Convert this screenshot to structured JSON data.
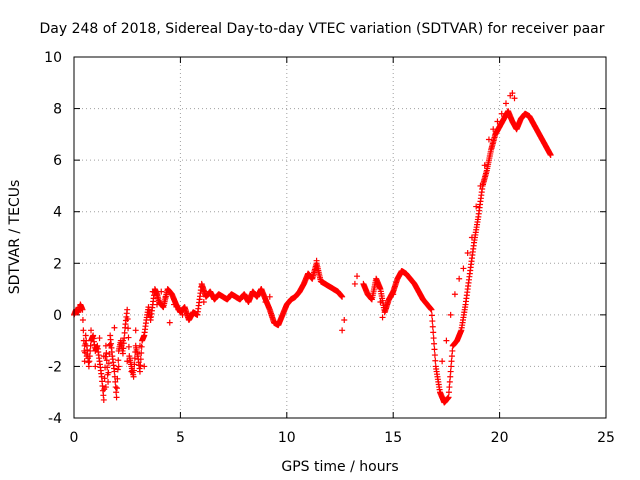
{
  "chart_data": {
    "type": "scatter",
    "title": "Day 248 of 2018, Sidereal Day-to-day VTEC variation (SDTVAR) for receiver paar",
    "xlabel": "GPS time / hours",
    "ylabel": "SDTVAR / TECUs",
    "xlim": [
      0,
      25
    ],
    "ylim": [
      -4,
      10
    ],
    "xticks": [
      "0",
      "5",
      "10",
      "15",
      "20",
      "25"
    ],
    "yticks": [
      "-4",
      "-2",
      "0",
      "2",
      "4",
      "6",
      "8",
      "10"
    ],
    "grid": true,
    "marker": "+",
    "color": "#ff0000",
    "series": [
      {
        "name": "SDTVAR",
        "x": [
          0.0,
          0.1,
          0.2,
          0.3,
          0.4,
          0.5,
          0.55,
          0.6,
          0.7,
          0.8,
          0.9,
          1.0,
          1.1,
          1.2,
          1.3,
          1.4,
          1.5,
          1.6,
          1.7,
          1.8,
          1.9,
          2.0,
          2.1,
          2.2,
          2.3,
          2.4,
          2.5,
          2.6,
          2.7,
          2.8,
          2.9,
          3.0,
          3.1,
          3.2,
          3.3,
          3.4,
          3.5,
          3.6,
          3.7,
          3.8,
          3.9,
          4.0,
          4.2,
          4.4,
          4.6,
          4.8,
          5.0,
          5.2,
          5.4,
          5.6,
          5.8,
          6.0,
          6.2,
          6.4,
          6.6,
          6.8,
          7.0,
          7.2,
          7.4,
          7.6,
          7.8,
          8.0,
          8.2,
          8.4,
          8.6,
          8.8,
          9.0,
          9.2,
          9.4,
          9.6,
          9.8,
          10.0,
          10.2,
          10.4,
          10.6,
          10.8,
          11.0,
          11.2,
          11.4,
          11.6,
          11.8,
          12.0,
          12.2,
          12.4,
          12.6,
          13.6,
          13.8,
          14.0,
          14.2,
          14.4,
          14.6,
          14.8,
          15.0,
          15.2,
          15.4,
          15.6,
          15.8,
          16.0,
          16.2,
          16.4,
          16.6,
          16.8,
          17.0,
          17.2,
          17.4,
          17.6,
          17.8,
          18.0,
          18.2,
          18.4,
          18.6,
          18.8,
          19.0,
          19.2,
          19.4,
          19.6,
          19.8,
          20.0,
          20.2,
          20.4,
          20.6,
          20.8,
          21.0,
          21.2,
          21.4,
          21.6,
          21.8,
          22.0,
          22.2,
          22.4
        ],
        "y": [
          0.0,
          0.2,
          0.1,
          0.4,
          0.2,
          -1.8,
          -0.8,
          -1.2,
          -2.0,
          -1.0,
          -0.8,
          -1.4,
          -1.2,
          -1.8,
          -2.4,
          -3.3,
          -1.2,
          -2.6,
          -0.8,
          -1.6,
          -2.2,
          -3.2,
          -1.4,
          -1.0,
          -1.5,
          -0.5,
          0.2,
          -1.6,
          -2.0,
          -2.4,
          -1.2,
          -1.6,
          -2.2,
          -1.0,
          -0.8,
          -0.2,
          0.3,
          -0.2,
          0.4,
          1.0,
          0.8,
          0.5,
          0.3,
          1.0,
          0.8,
          0.4,
          0.1,
          0.3,
          -0.2,
          0.1,
          0.0,
          1.2,
          0.7,
          0.9,
          0.6,
          0.8,
          0.7,
          0.6,
          0.8,
          0.7,
          0.6,
          0.8,
          0.5,
          0.9,
          0.7,
          1.0,
          0.6,
          0.2,
          -0.3,
          -0.4,
          0.0,
          0.4,
          0.6,
          0.7,
          0.9,
          1.2,
          1.6,
          1.4,
          2.0,
          1.3,
          1.2,
          1.1,
          1.0,
          0.9,
          0.7,
          1.2,
          0.8,
          0.6,
          1.4,
          1.0,
          0.1,
          0.6,
          0.9,
          1.4,
          1.7,
          1.6,
          1.4,
          1.2,
          0.9,
          0.6,
          0.4,
          0.2,
          -2.0,
          -3.0,
          -3.4,
          -3.2,
          -1.2,
          -1.0,
          -0.6,
          0.4,
          1.6,
          2.8,
          3.8,
          5.0,
          5.6,
          6.4,
          7.0,
          7.3,
          7.6,
          7.9,
          7.5,
          7.2,
          7.6,
          7.8,
          7.7,
          7.4,
          7.1,
          6.8,
          6.5,
          6.2
        ],
        "extra_x": [
          0.5,
          0.6,
          0.8,
          1.0,
          1.2,
          1.4,
          1.5,
          1.7,
          1.9,
          2.1,
          2.3,
          2.5,
          2.7,
          2.9,
          3.1,
          3.3,
          3.5,
          3.7,
          3.9,
          4.1,
          4.3,
          4.5,
          4.7,
          4.9,
          5.1,
          6.0,
          6.1,
          8.8,
          9.0,
          9.2,
          11.4,
          12.6,
          12.7,
          13.2,
          13.3,
          14.4,
          14.5,
          15.0,
          17.3,
          17.5,
          17.7,
          17.9,
          18.1,
          18.3,
          18.5,
          18.7,
          18.9,
          19.1,
          19.3,
          19.5,
          19.7,
          19.9,
          20.1,
          20.3,
          20.5,
          20.6,
          20.7
        ],
        "extra_y": [
          -1.2,
          -1.6,
          -0.6,
          -2.0,
          -0.9,
          -1.6,
          -2.8,
          -1.2,
          -0.5,
          -2.0,
          -1.0,
          -1.8,
          -2.2,
          -0.6,
          -1.2,
          -2.0,
          0.0,
          0.9,
          0.4,
          0.9,
          0.7,
          -0.3,
          0.4,
          0.2,
          0.0,
          1.1,
          0.5,
          1.0,
          0.5,
          0.7,
          2.1,
          -0.6,
          -0.2,
          1.2,
          1.5,
          0.5,
          -0.1,
          0.8,
          -1.8,
          -1.0,
          0.0,
          0.8,
          1.4,
          1.8,
          2.4,
          3.0,
          4.2,
          5.0,
          5.8,
          6.8,
          7.2,
          7.5,
          7.8,
          8.2,
          8.5,
          8.6,
          8.4
        ]
      }
    ]
  }
}
